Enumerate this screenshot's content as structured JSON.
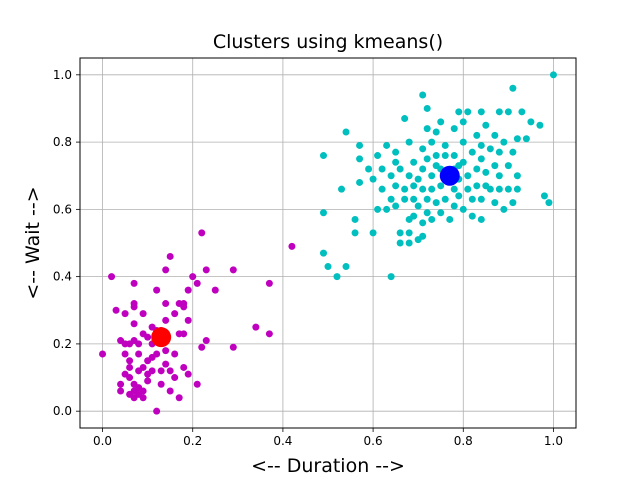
{
  "chart_data": {
    "type": "scatter",
    "title": "Clusters using kmeans()",
    "xlabel": "<-- Duration -->",
    "ylabel": "<-- Wait -->",
    "xlim": [
      -0.05,
      1.05
    ],
    "ylim": [
      -0.05,
      1.05
    ],
    "xticks": [
      0.0,
      0.2,
      0.4,
      0.6,
      0.8,
      1.0
    ],
    "yticks": [
      0.0,
      0.2,
      0.4,
      0.6,
      0.8,
      1.0
    ],
    "xtick_labels": [
      "0.0",
      "0.2",
      "0.4",
      "0.6",
      "0.8",
      "1.0"
    ],
    "ytick_labels": [
      "0.0",
      "0.2",
      "0.4",
      "0.6",
      "0.8",
      "1.0"
    ],
    "grid": true,
    "colors": {
      "cluster_1_points": "#bf00bf",
      "cluster_2_points": "#00bfbf",
      "cluster_1_centroid": "#ff0000",
      "cluster_2_centroid": "#0000ff"
    },
    "series": [
      {
        "points": [
          [
            0.0,
            0.17
          ],
          [
            0.02,
            0.4
          ],
          [
            0.03,
            0.3
          ],
          [
            0.04,
            0.21
          ],
          [
            0.04,
            0.08
          ],
          [
            0.04,
            0.06
          ],
          [
            0.05,
            0.2
          ],
          [
            0.05,
            0.17
          ],
          [
            0.05,
            0.11
          ],
          [
            0.05,
            0.29
          ],
          [
            0.06,
            0.2
          ],
          [
            0.06,
            0.15
          ],
          [
            0.06,
            0.13
          ],
          [
            0.06,
            0.1
          ],
          [
            0.06,
            0.05
          ],
          [
            0.07,
            0.38
          ],
          [
            0.07,
            0.32
          ],
          [
            0.07,
            0.31
          ],
          [
            0.07,
            0.26
          ],
          [
            0.07,
            0.21
          ],
          [
            0.07,
            0.08
          ],
          [
            0.07,
            0.06
          ],
          [
            0.07,
            0.04
          ],
          [
            0.08,
            0.2
          ],
          [
            0.08,
            0.17
          ],
          [
            0.08,
            0.12
          ],
          [
            0.08,
            0.07
          ],
          [
            0.08,
            0.05
          ],
          [
            0.09,
            0.29
          ],
          [
            0.09,
            0.23
          ],
          [
            0.09,
            0.13
          ],
          [
            0.09,
            0.06
          ],
          [
            0.09,
            0.04
          ],
          [
            0.1,
            0.22
          ],
          [
            0.1,
            0.15
          ],
          [
            0.1,
            0.11
          ],
          [
            0.1,
            0.09
          ],
          [
            0.11,
            0.25
          ],
          [
            0.11,
            0.2
          ],
          [
            0.11,
            0.16
          ],
          [
            0.11,
            0.12
          ],
          [
            0.12,
            0.36
          ],
          [
            0.12,
            0.24
          ],
          [
            0.12,
            0.21
          ],
          [
            0.12,
            0.17
          ],
          [
            0.12,
            0.0
          ],
          [
            0.13,
            0.24
          ],
          [
            0.13,
            0.12
          ],
          [
            0.13,
            0.08
          ],
          [
            0.14,
            0.42
          ],
          [
            0.14,
            0.32
          ],
          [
            0.14,
            0.27
          ],
          [
            0.14,
            0.22
          ],
          [
            0.14,
            0.18
          ],
          [
            0.14,
            0.14
          ],
          [
            0.15,
            0.46
          ],
          [
            0.15,
            0.12
          ],
          [
            0.15,
            0.06
          ],
          [
            0.16,
            0.29
          ],
          [
            0.16,
            0.17
          ],
          [
            0.16,
            0.1
          ],
          [
            0.17,
            0.32
          ],
          [
            0.17,
            0.23
          ],
          [
            0.17,
            0.04
          ],
          [
            0.18,
            0.32
          ],
          [
            0.18,
            0.31
          ],
          [
            0.18,
            0.23
          ],
          [
            0.18,
            0.13
          ],
          [
            0.19,
            0.36
          ],
          [
            0.19,
            0.27
          ],
          [
            0.19,
            0.11
          ],
          [
            0.2,
            0.4
          ],
          [
            0.21,
            0.08
          ],
          [
            0.21,
            0.38
          ],
          [
            0.22,
            0.53
          ],
          [
            0.22,
            0.19
          ],
          [
            0.23,
            0.42
          ],
          [
            0.23,
            0.21
          ],
          [
            0.25,
            0.36
          ],
          [
            0.29,
            0.19
          ],
          [
            0.29,
            0.42
          ],
          [
            0.34,
            0.25
          ],
          [
            0.37,
            0.23
          ],
          [
            0.37,
            0.38
          ],
          [
            0.42,
            0.49
          ]
        ]
      },
      {
        "points": [
          [
            0.49,
            0.76
          ],
          [
            0.49,
            0.59
          ],
          [
            0.49,
            0.47
          ],
          [
            0.5,
            0.43
          ],
          [
            0.52,
            0.4
          ],
          [
            0.53,
            0.66
          ],
          [
            0.54,
            0.83
          ],
          [
            0.54,
            0.43
          ],
          [
            0.56,
            0.57
          ],
          [
            0.56,
            0.53
          ],
          [
            0.57,
            0.79
          ],
          [
            0.57,
            0.75
          ],
          [
            0.57,
            0.68
          ],
          [
            0.59,
            0.72
          ],
          [
            0.6,
            0.53
          ],
          [
            0.6,
            0.69
          ],
          [
            0.61,
            0.76
          ],
          [
            0.61,
            0.6
          ],
          [
            0.62,
            0.72
          ],
          [
            0.62,
            0.66
          ],
          [
            0.63,
            0.79
          ],
          [
            0.63,
            0.6
          ],
          [
            0.64,
            0.4
          ],
          [
            0.64,
            0.7
          ],
          [
            0.64,
            0.63
          ],
          [
            0.65,
            0.77
          ],
          [
            0.65,
            0.74
          ],
          [
            0.65,
            0.67
          ],
          [
            0.65,
            0.61
          ],
          [
            0.66,
            0.53
          ],
          [
            0.66,
            0.5
          ],
          [
            0.66,
            0.72
          ],
          [
            0.67,
            0.66
          ],
          [
            0.67,
            0.63
          ],
          [
            0.67,
            0.87
          ],
          [
            0.68,
            0.8
          ],
          [
            0.68,
            0.7
          ],
          [
            0.68,
            0.57
          ],
          [
            0.68,
            0.53
          ],
          [
            0.68,
            0.5
          ],
          [
            0.69,
            0.74
          ],
          [
            0.69,
            0.67
          ],
          [
            0.69,
            0.63
          ],
          [
            0.69,
            0.58
          ],
          [
            0.7,
            0.69
          ],
          [
            0.7,
            0.61
          ],
          [
            0.7,
            0.51
          ],
          [
            0.71,
            0.94
          ],
          [
            0.71,
            0.78
          ],
          [
            0.71,
            0.72
          ],
          [
            0.71,
            0.66
          ],
          [
            0.71,
            0.56
          ],
          [
            0.71,
            0.52
          ],
          [
            0.72,
            0.9
          ],
          [
            0.72,
            0.84
          ],
          [
            0.72,
            0.75
          ],
          [
            0.72,
            0.63
          ],
          [
            0.72,
            0.59
          ],
          [
            0.73,
            0.8
          ],
          [
            0.73,
            0.7
          ],
          [
            0.73,
            0.66
          ],
          [
            0.73,
            0.57
          ],
          [
            0.74,
            0.83
          ],
          [
            0.74,
            0.76
          ],
          [
            0.74,
            0.73
          ],
          [
            0.74,
            0.62
          ],
          [
            0.75,
            0.86
          ],
          [
            0.75,
            0.72
          ],
          [
            0.75,
            0.67
          ],
          [
            0.75,
            0.59
          ],
          [
            0.76,
            0.79
          ],
          [
            0.76,
            0.76
          ],
          [
            0.76,
            0.63
          ],
          [
            0.77,
            0.69
          ],
          [
            0.77,
            0.57
          ],
          [
            0.78,
            0.84
          ],
          [
            0.78,
            0.76
          ],
          [
            0.78,
            0.72
          ],
          [
            0.78,
            0.66
          ],
          [
            0.78,
            0.61
          ],
          [
            0.79,
            0.89
          ],
          [
            0.79,
            0.73
          ],
          [
            0.79,
            0.69
          ],
          [
            0.79,
            0.64
          ],
          [
            0.8,
            0.86
          ],
          [
            0.8,
            0.8
          ],
          [
            0.8,
            0.74
          ],
          [
            0.8,
            0.6
          ],
          [
            0.81,
            0.89
          ],
          [
            0.81,
            0.7
          ],
          [
            0.81,
            0.66
          ],
          [
            0.82,
            0.77
          ],
          [
            0.82,
            0.63
          ],
          [
            0.82,
            0.58
          ],
          [
            0.83,
            0.82
          ],
          [
            0.83,
            0.72
          ],
          [
            0.83,
            0.67
          ],
          [
            0.84,
            0.89
          ],
          [
            0.84,
            0.79
          ],
          [
            0.84,
            0.75
          ],
          [
            0.84,
            0.63
          ],
          [
            0.84,
            0.57
          ],
          [
            0.85,
            0.85
          ],
          [
            0.85,
            0.71
          ],
          [
            0.85,
            0.67
          ],
          [
            0.86,
            0.78
          ],
          [
            0.86,
            0.66
          ],
          [
            0.87,
            0.82
          ],
          [
            0.87,
            0.73
          ],
          [
            0.87,
            0.62
          ],
          [
            0.88,
            0.89
          ],
          [
            0.88,
            0.77
          ],
          [
            0.88,
            0.7
          ],
          [
            0.88,
            0.66
          ],
          [
            0.89,
            0.8
          ],
          [
            0.89,
            0.6
          ],
          [
            0.9,
            0.89
          ],
          [
            0.9,
            0.73
          ],
          [
            0.9,
            0.66
          ],
          [
            0.91,
            0.96
          ],
          [
            0.91,
            0.77
          ],
          [
            0.91,
            0.62
          ],
          [
            0.92,
            0.81
          ],
          [
            0.92,
            0.7
          ],
          [
            0.92,
            0.66
          ],
          [
            0.93,
            0.89
          ],
          [
            0.94,
            0.81
          ],
          [
            0.95,
            0.86
          ],
          [
            0.97,
            0.85
          ],
          [
            0.98,
            0.64
          ],
          [
            0.99,
            0.62
          ],
          [
            1.0,
            1.0
          ]
        ]
      }
    ],
    "centroids": [
      {
        "x": 0.13,
        "y": 0.22
      },
      {
        "x": 0.77,
        "y": 0.7
      }
    ]
  }
}
